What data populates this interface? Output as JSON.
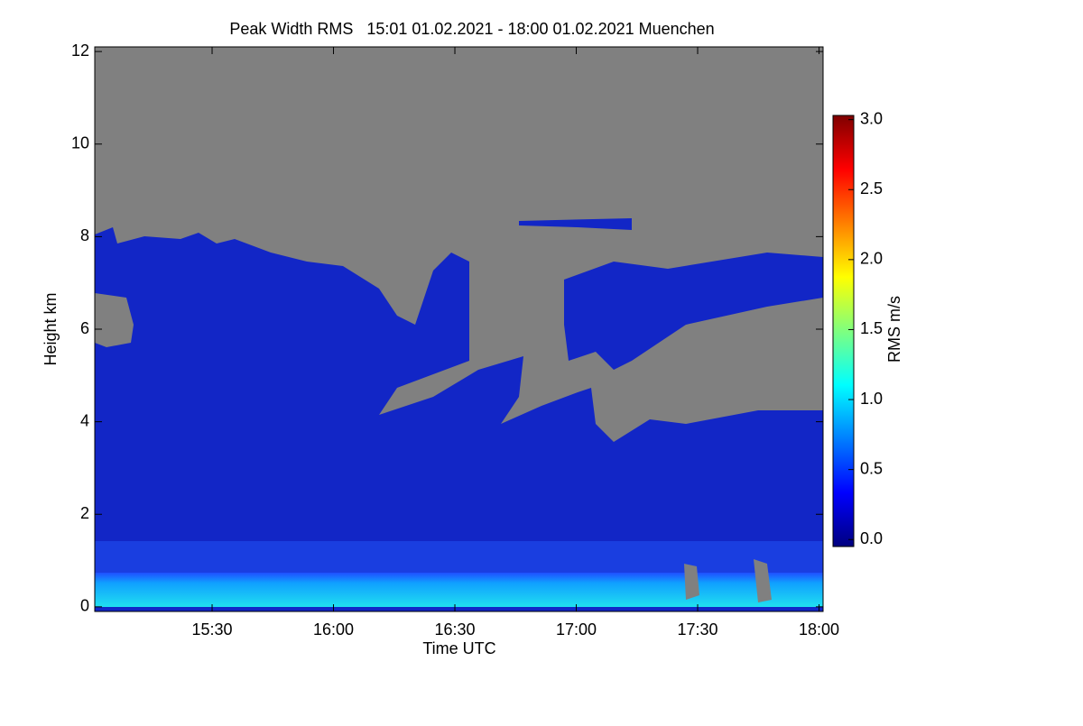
{
  "chart_data": {
    "type": "heatmap",
    "title": "Peak Width RMS   15:01 01.02.2021 - 18:00 01.02.2021 Muenchen",
    "x_label": "Time UTC",
    "y_label": "Height km",
    "xlim": [
      901,
      1081
    ],
    "xticks": [
      {
        "value": 930,
        "label": "15:30"
      },
      {
        "value": 960,
        "label": "16:00"
      },
      {
        "value": 990,
        "label": "16:30"
      },
      {
        "value": 1020,
        "label": "17:00"
      },
      {
        "value": 1050,
        "label": "17:30"
      },
      {
        "value": 1080,
        "label": "18:00"
      }
    ],
    "ylim": [
      -0.1,
      12.1
    ],
    "yticks": [
      0,
      2,
      4,
      6,
      8,
      10,
      12
    ],
    "colorbar": {
      "label": "RMS m/s",
      "colormap": "jet",
      "lim": [
        -0.05,
        3.03
      ],
      "ticks": [
        {
          "value": 0,
          "label": "0.0"
        },
        {
          "value": 0.5,
          "label": "0.5"
        },
        {
          "value": 1,
          "label": "1.0"
        },
        {
          "value": 1.5,
          "label": "1.5"
        },
        {
          "value": 2,
          "label": "2.0"
        },
        {
          "value": 2.5,
          "label": "2.5"
        },
        {
          "value": 3,
          "label": "3.0"
        }
      ]
    },
    "missing_color": "#808080"
  }
}
